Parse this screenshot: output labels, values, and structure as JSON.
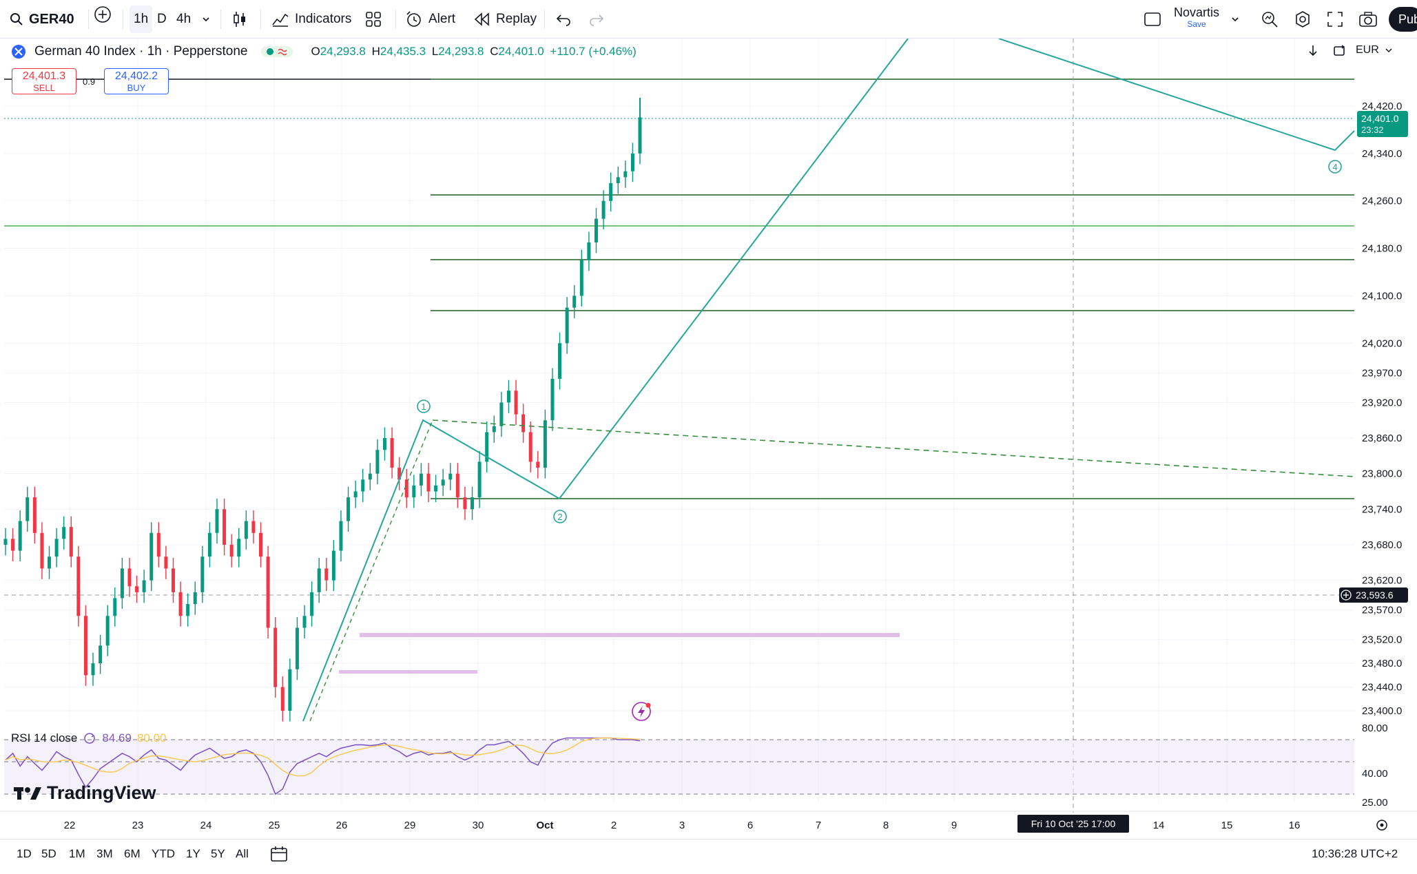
{
  "toolbar": {
    "symbol": "GER40",
    "timeframes": [
      "1h",
      "D",
      "4h"
    ],
    "indicators_label": "Indicators",
    "alert_label": "Alert",
    "replay_label": "Replay",
    "layout_name": "Novartis",
    "layout_save": "Save",
    "publish_label": "Pub"
  },
  "legend": {
    "title": "German 40 Index · 1h · Pepperstone",
    "open_label": "O",
    "open": "24,293.8",
    "high_label": "H",
    "high": "24,435.3",
    "low_label": "L",
    "low": "24,293.8",
    "close_label": "C",
    "close": "24,401.0",
    "change": "+110.7 (+0.46%)"
  },
  "trade": {
    "sell_price": "24,401.3",
    "sell_label": "SELL",
    "spread": "0.9",
    "buy_price": "24,402.2",
    "buy_label": "BUY"
  },
  "currency": "EUR",
  "price_axis": {
    "ticks": [
      "24,420.0",
      "24,340.0",
      "24,260.0",
      "24,180.0",
      "24,100.0",
      "24,020.0",
      "23,970.0",
      "23,920.0",
      "23,860.0",
      "23,800.0",
      "23,740.0",
      "23,680.0",
      "23,620.0",
      "23,570.0",
      "23,520.0",
      "23,480.0",
      "23,440.0",
      "23,400.0"
    ],
    "last_price": "24,401.0",
    "countdown": "23:32",
    "crosshair_price": "23,593.6"
  },
  "rsi": {
    "label": "RSI 14 close",
    "value": "84.69",
    "ma_value": "80.00",
    "ticks": [
      "80.00",
      "40.00",
      "25.00"
    ]
  },
  "time_axis": {
    "labels": [
      "22",
      "23",
      "24",
      "25",
      "26",
      "29",
      "30",
      "Oct",
      "2",
      "3",
      "6",
      "7",
      "8",
      "9",
      "14",
      "15",
      "16"
    ],
    "crosshair_time": "Fri 10 Oct '25   17:00"
  },
  "waves": [
    "1",
    "2",
    "4"
  ],
  "ranges": [
    "1D",
    "5D",
    "1M",
    "3M",
    "6M",
    "YTD",
    "1Y",
    "5Y",
    "All"
  ],
  "clock": "10:36:28 UTC+2",
  "brand": "TradingView",
  "colors": {
    "up": "#089981",
    "down": "#f23645",
    "line_green": "#1b5e20",
    "wave": "#26a69a",
    "pink": "#e1bee7",
    "rsi_line": "#7e57c2"
  }
}
